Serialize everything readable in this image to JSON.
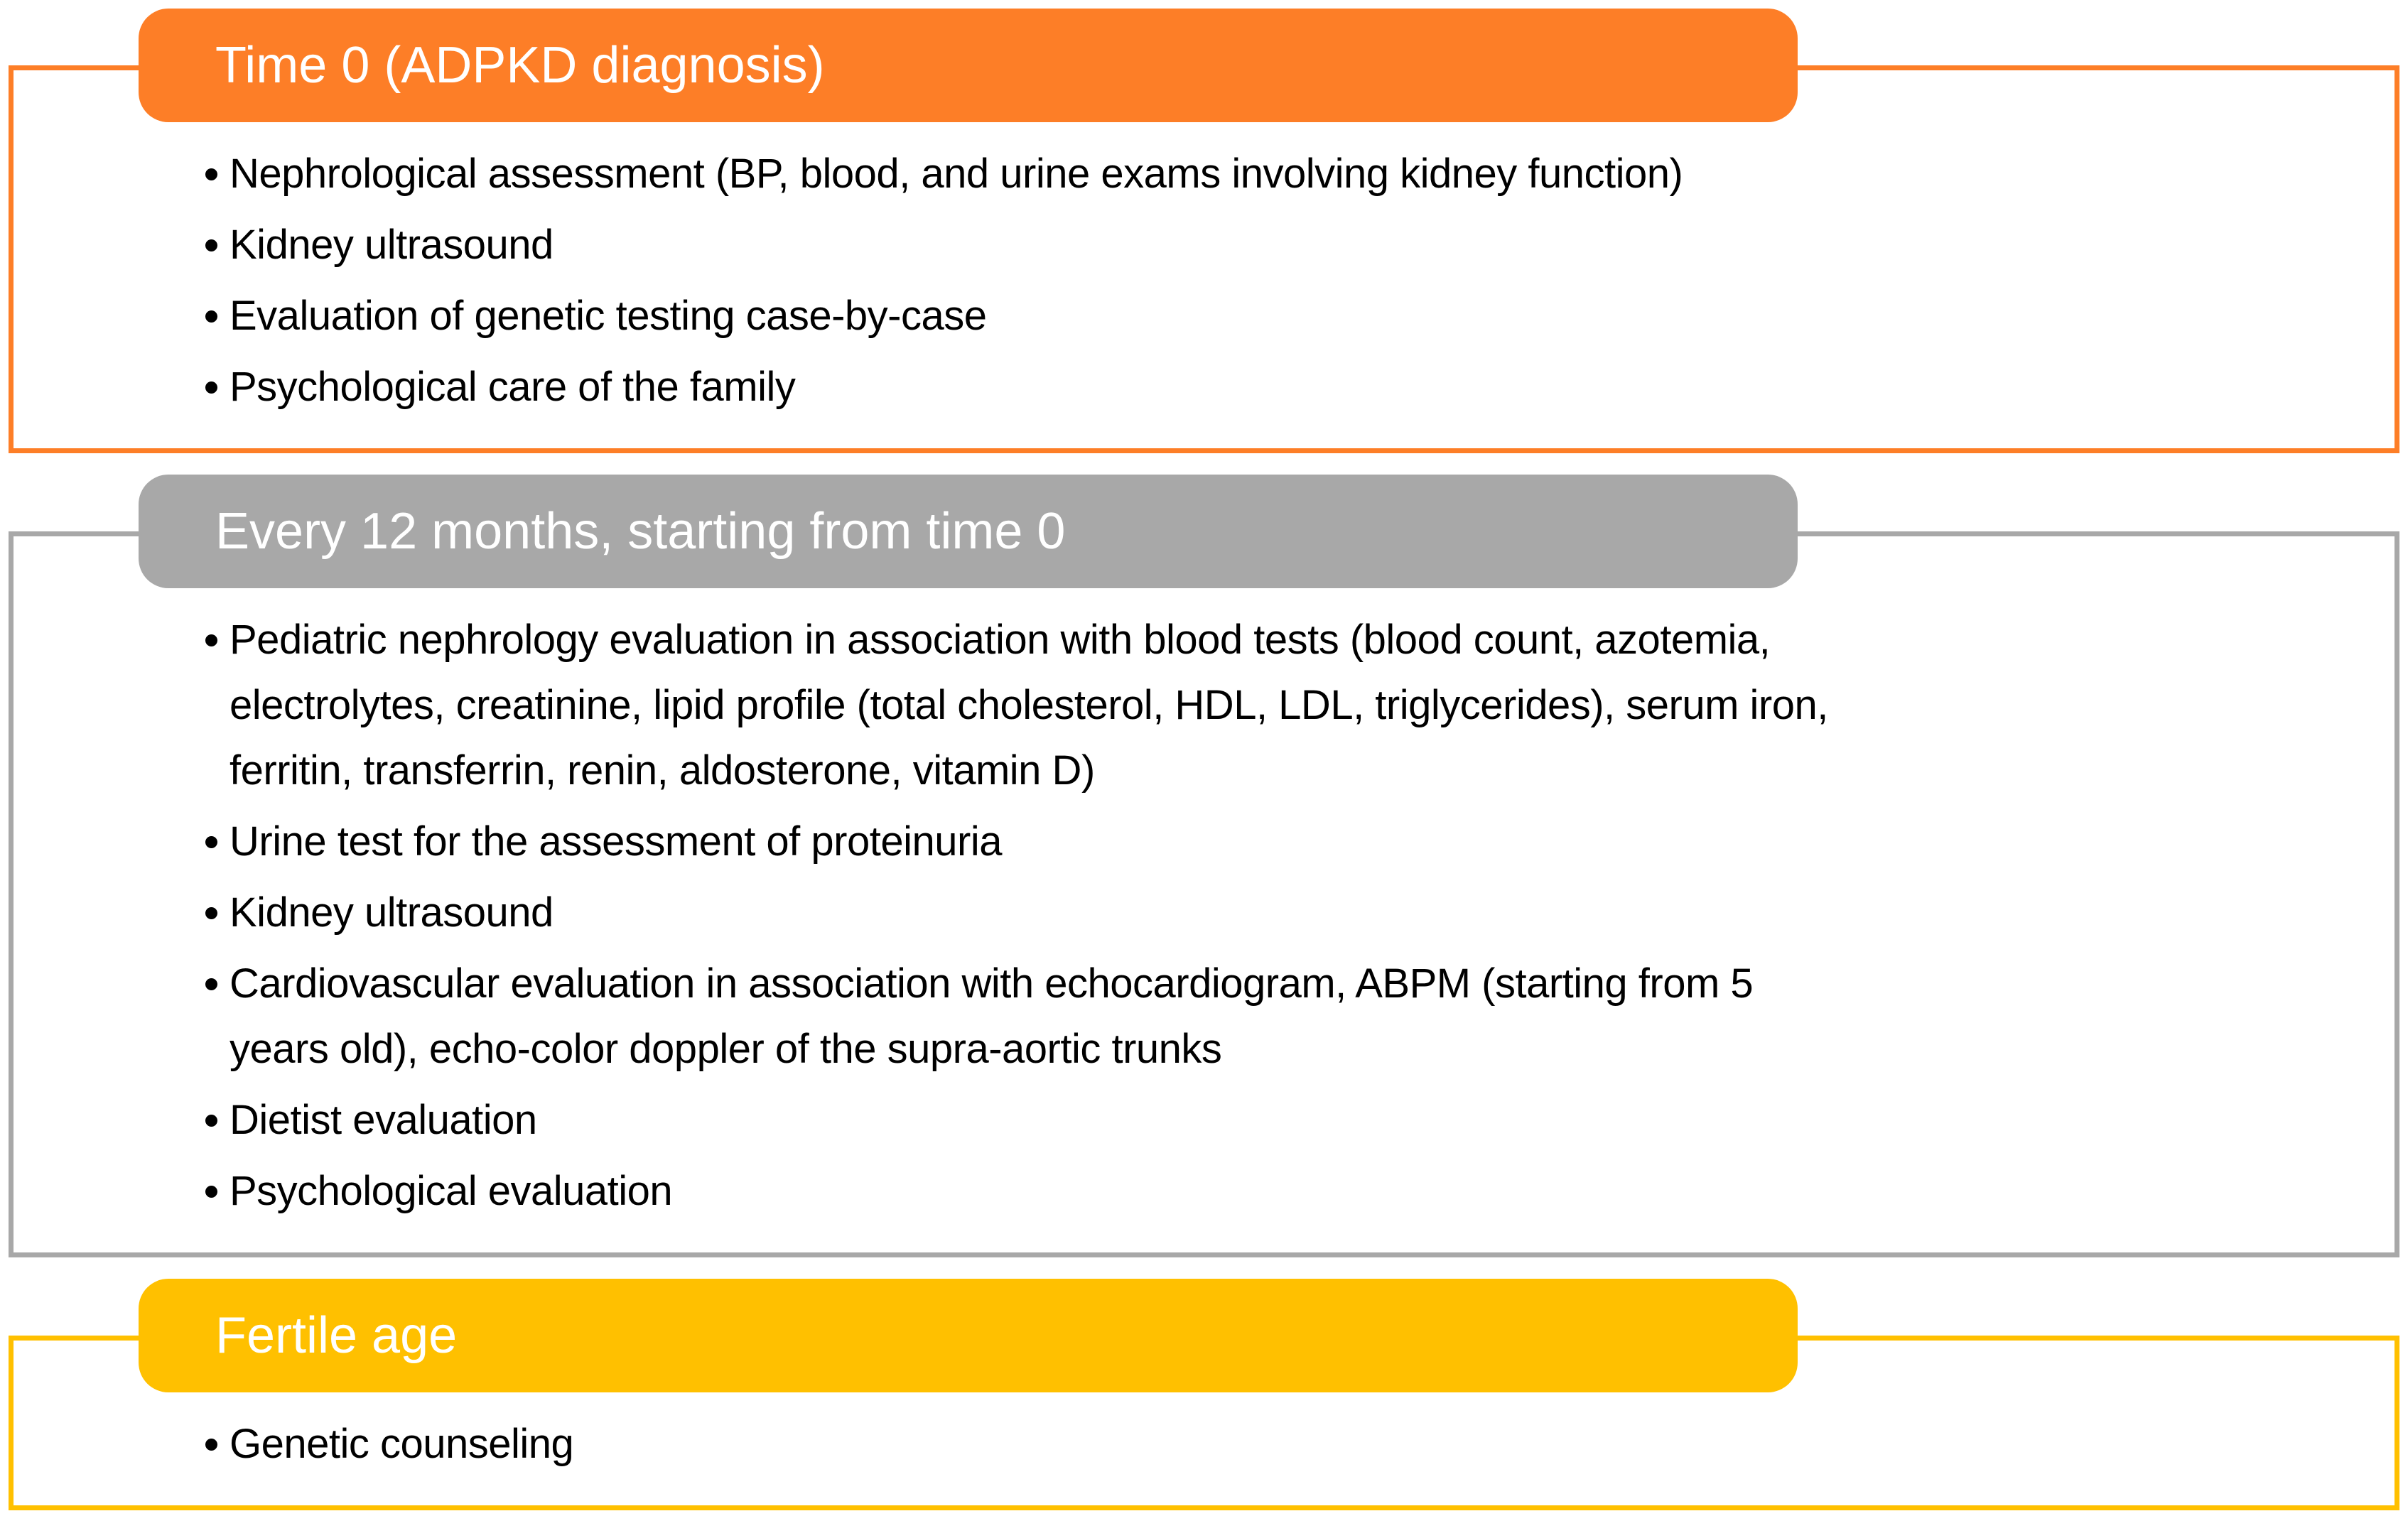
{
  "page": {
    "background": "#FFFFFF",
    "text_color": "#000000",
    "header_text_color": "#FFFFFF"
  },
  "sections": [
    {
      "id": "time-0",
      "title": "Time 0 (ADPKD diagnosis)",
      "accent": "#FD7E27",
      "bullets": [
        "Nephrological assessment (BP, blood, and urine exams involving kidney function)",
        "Kidney ultrasound",
        "Evaluation of genetic testing case-by-case",
        "Psychological care of the family"
      ]
    },
    {
      "id": "every-12-months",
      "title": "Every 12 months, starting from time 0",
      "accent": "#A8A8A8",
      "bullets": [
        "Pediatric nephrology evaluation in association with blood tests (blood count, azotemia,\nelectrolytes, creatinine, lipid profile (total cholesterol, HDL, LDL, triglycerides), serum iron,\nferritin, transferrin, renin, aldosterone, vitamin D)",
        "Urine test for the assessment of proteinuria",
        "Kidney ultrasound",
        "Cardiovascular evaluation in association with echocardiogram, ABPM (starting from 5\nyears old), echo-color doppler of the supra-aortic trunks",
        "Dietist evaluation",
        "Psychological evaluation"
      ]
    },
    {
      "id": "fertile-age",
      "title": "Fertile age",
      "accent": "#FFC000",
      "bullets": [
        "Genetic counseling"
      ]
    }
  ]
}
